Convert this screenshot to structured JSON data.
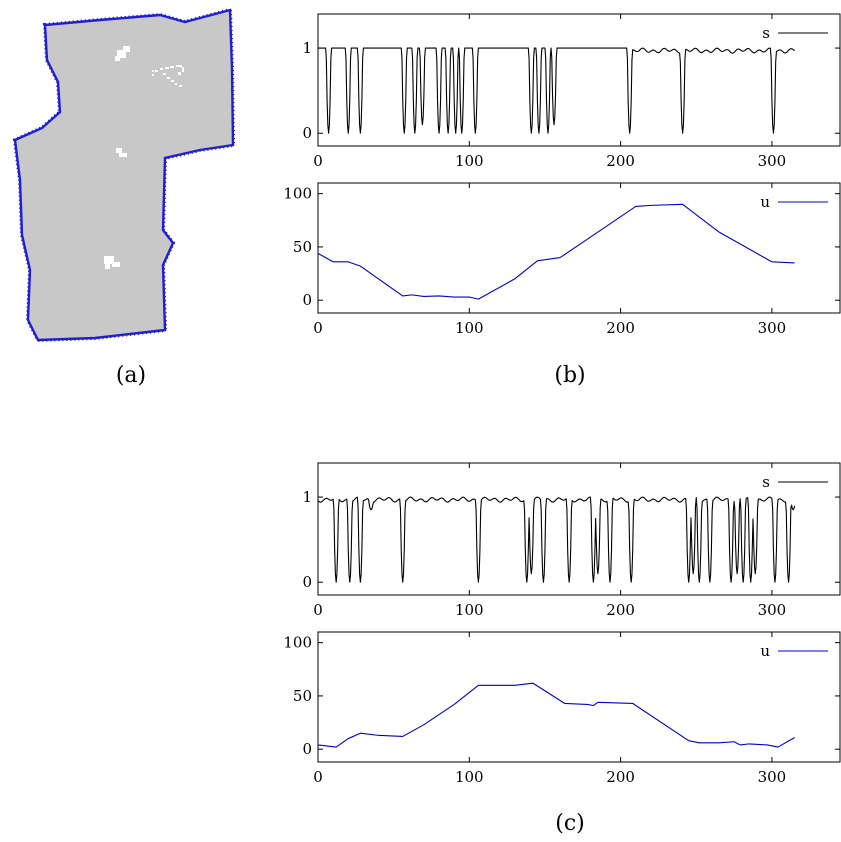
{
  "captions": {
    "a": "(a)",
    "b": "(b)",
    "c": "(c)"
  },
  "colors": {
    "s_line": "#000000",
    "u_line": "#0000cc",
    "region_fill": "#c8c8c8",
    "boundary": "#1f1fd0",
    "hole": "#ffffff"
  },
  "map_region": {
    "description_icon": "floor-plan-map",
    "has_inward_hatching": true
  },
  "chart_data": [
    {
      "id": "b-s",
      "type": "line",
      "title": "",
      "xlabel": "",
      "ylabel": "",
      "xlim": [
        0,
        345
      ],
      "ylim": [
        -0.15,
        1.4
      ],
      "xticks": [
        0,
        100,
        200,
        300
      ],
      "yticks": [
        0,
        1
      ],
      "legend_position": "top-right",
      "series": [
        {
          "name": "s",
          "color": "#000000",
          "baseline": 1,
          "ripple_range": [
            205,
            315
          ],
          "dips": [
            [
              7,
              0
            ],
            [
              15,
              1.0
            ],
            [
              20,
              0
            ],
            [
              28,
              0
            ],
            [
              57,
              0
            ],
            [
              61,
              1.0
            ],
            [
              64,
              0
            ],
            [
              69,
              0.1
            ],
            [
              80,
              0
            ],
            [
              86,
              0
            ],
            [
              91,
              0
            ],
            [
              95,
              0
            ],
            [
              104,
              0
            ],
            [
              141,
              0
            ],
            [
              143,
              1.0
            ],
            [
              146,
              0
            ],
            [
              152,
              0
            ],
            [
              156,
              0.1
            ],
            [
              206,
              0
            ],
            [
              241,
              0
            ],
            [
              301,
              0
            ]
          ],
          "end_x": 315
        }
      ]
    },
    {
      "id": "b-u",
      "type": "line",
      "title": "",
      "xlabel": "",
      "ylabel": "",
      "xlim": [
        0,
        345
      ],
      "ylim": [
        -12,
        110
      ],
      "xticks": [
        0,
        100,
        200,
        300
      ],
      "yticks": [
        0,
        50,
        100
      ],
      "legend_position": "top-right",
      "series": [
        {
          "name": "u",
          "color": "#0000cc",
          "x": [
            0,
            10,
            20,
            28,
            40,
            56,
            62,
            70,
            80,
            90,
            100,
            106,
            130,
            145,
            160,
            185,
            210,
            220,
            241,
            265,
            300,
            315
          ],
          "y": [
            44,
            36,
            36,
            32,
            20,
            4,
            5,
            3.5,
            4,
            3,
            3,
            1,
            20,
            37,
            40,
            64,
            88,
            89,
            90,
            64,
            36,
            35
          ]
        }
      ]
    },
    {
      "id": "c-s",
      "type": "line",
      "title": "",
      "xlabel": "",
      "ylabel": "",
      "xlim": [
        0,
        345
      ],
      "ylim": [
        -0.15,
        1.4
      ],
      "xticks": [
        0,
        100,
        200,
        300
      ],
      "yticks": [
        0,
        1
      ],
      "legend_position": "top-right",
      "series": [
        {
          "name": "s",
          "color": "#000000",
          "baseline": 1,
          "ripple_range": [
            0,
            315
          ],
          "dips": [
            [
              12,
              0
            ],
            [
              21,
              0
            ],
            [
              28,
              0
            ],
            [
              35,
              0.85
            ],
            [
              56,
              0
            ],
            [
              106,
              0
            ],
            [
              138,
              0
            ],
            [
              141,
              0.1
            ],
            [
              149,
              0
            ],
            [
              166,
              0
            ],
            [
              182,
              0
            ],
            [
              185,
              0.1
            ],
            [
              193,
              0
            ],
            [
              207,
              0
            ],
            [
              245,
              0
            ],
            [
              248,
              0.1
            ],
            [
              252,
              0
            ],
            [
              259,
              0
            ],
            [
              273,
              0
            ],
            [
              277,
              0.1
            ],
            [
              281,
              0
            ],
            [
              286,
              0
            ],
            [
              289,
              0.1
            ],
            [
              302,
              0
            ],
            [
              311,
              0
            ],
            [
              314,
              0.85
            ]
          ],
          "end_x": 315
        }
      ]
    },
    {
      "id": "c-u",
      "type": "line",
      "title": "",
      "xlabel": "",
      "ylabel": "",
      "xlim": [
        0,
        345
      ],
      "ylim": [
        -12,
        110
      ],
      "xticks": [
        0,
        100,
        200,
        300
      ],
      "yticks": [
        0,
        50,
        100
      ],
      "legend_position": "top-right",
      "series": [
        {
          "name": "u",
          "color": "#0000cc",
          "x": [
            0,
            12,
            20,
            28,
            40,
            56,
            70,
            90,
            106,
            130,
            142,
            163,
            178,
            182,
            185,
            208,
            245,
            252,
            265,
            275,
            279,
            285,
            297,
            304,
            315
          ],
          "y": [
            4,
            2,
            10,
            15,
            13,
            12,
            23,
            42,
            60,
            60,
            62,
            43,
            42,
            41,
            44,
            43,
            8,
            6,
            6,
            7,
            4,
            5,
            4,
            2,
            11
          ]
        }
      ]
    }
  ]
}
